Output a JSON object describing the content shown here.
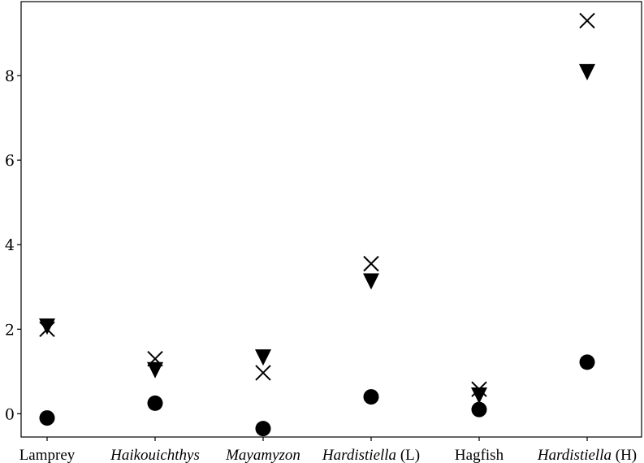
{
  "chart_data": {
    "type": "scatter",
    "title": "",
    "xlabel": "",
    "ylabel": "",
    "categories": [
      {
        "name": "Lamprey",
        "italic": "",
        "suffix": ""
      },
      {
        "name": "",
        "italic": "Haikouichthys",
        "suffix": ""
      },
      {
        "name": "",
        "italic": "Mayamyzon",
        "suffix": ""
      },
      {
        "name": "",
        "italic": "Hardistiella",
        "suffix": " (L)"
      },
      {
        "name": "Hagfish",
        "italic": "",
        "suffix": ""
      },
      {
        "name": "",
        "italic": "Hardistiella",
        "suffix": " (H)"
      }
    ],
    "ylim": [
      -0.55,
      9.75
    ],
    "yticks": [
      0,
      2,
      4,
      6,
      8
    ],
    "ytick_labels": [
      "0",
      "2",
      "4",
      "6",
      "8"
    ],
    "grid": false,
    "legend": "none",
    "series": [
      {
        "marker": "circle",
        "color": "#000000",
        "values": [
          -0.1,
          0.25,
          -0.35,
          0.4,
          0.1,
          1.22
        ]
      },
      {
        "marker": "cross",
        "color": "#000000",
        "values": [
          2.0,
          1.3,
          0.97,
          3.55,
          0.58,
          9.3
        ]
      },
      {
        "marker": "triangle-down",
        "color": "#000000",
        "values": [
          2.08,
          1.05,
          1.35,
          3.15,
          0.45,
          8.1
        ]
      }
    ]
  }
}
